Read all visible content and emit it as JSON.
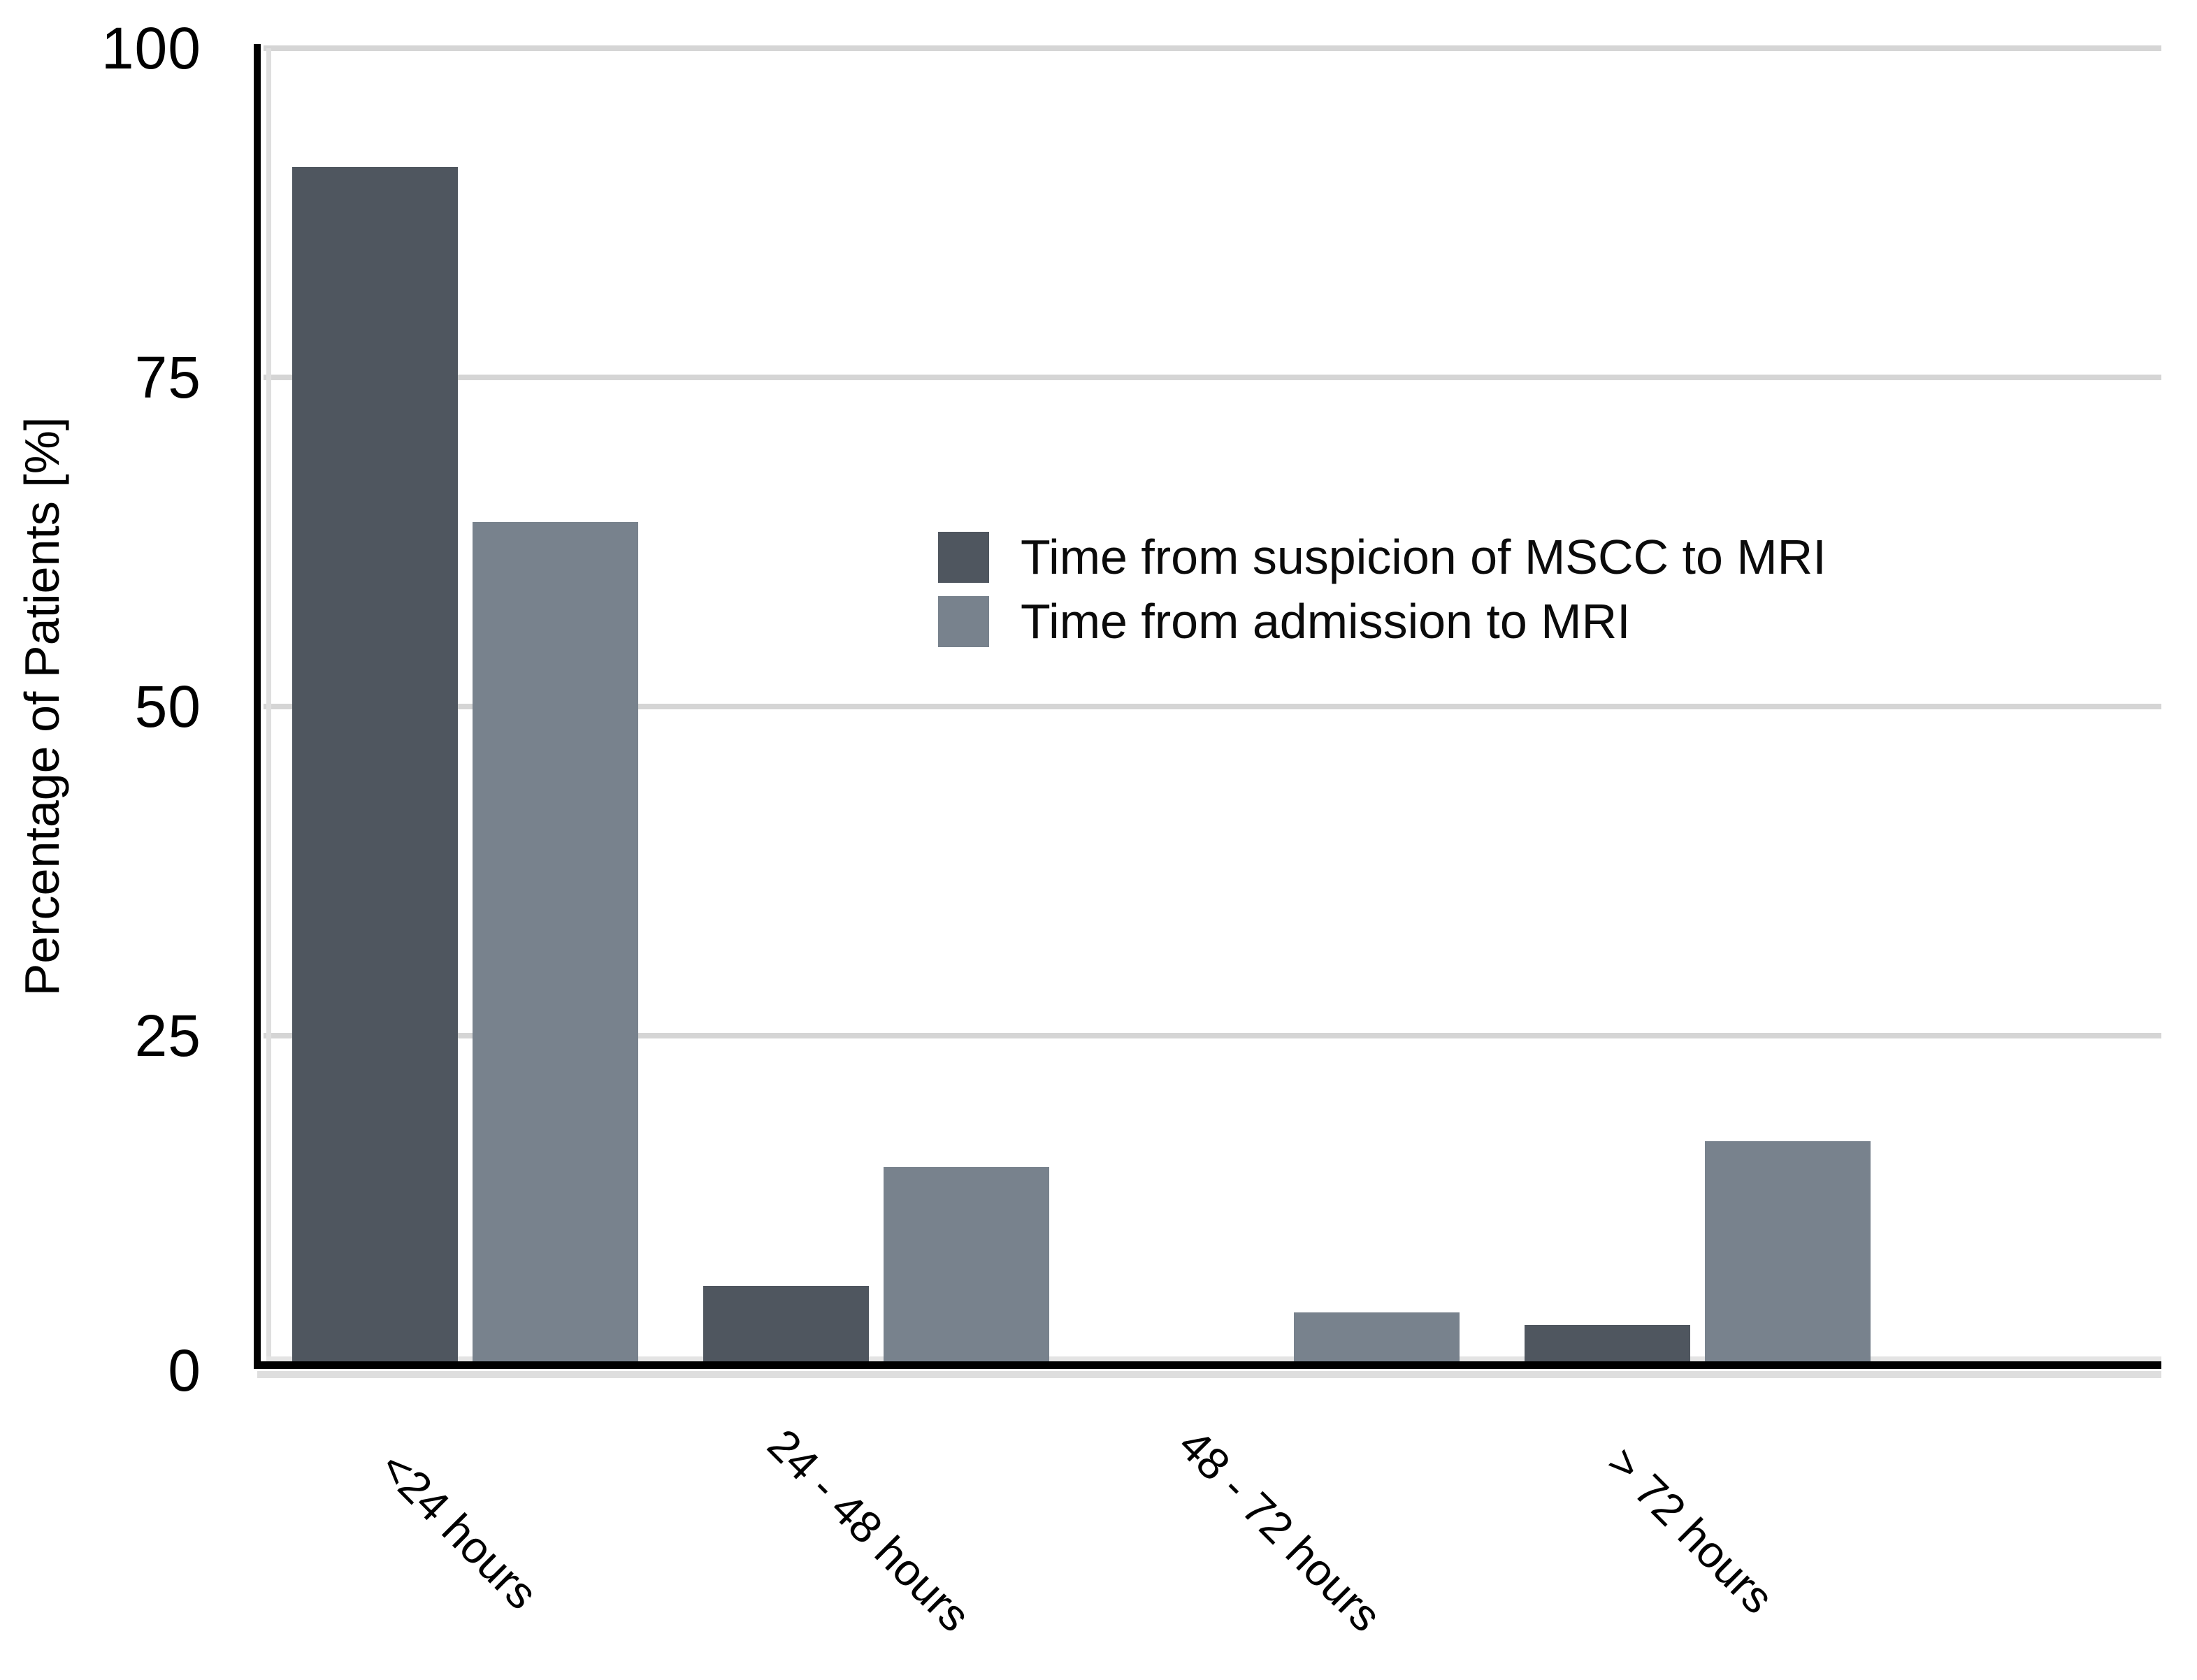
{
  "chart_data": {
    "type": "bar",
    "categories": [
      "<24 hours",
      "24 - 48 hours",
      "48 - 72 hours",
      "> 72 hours"
    ],
    "series": [
      {
        "name": "Time from suspicion of MSCC to MRI",
        "values": [
          91,
          6,
          0,
          3
        ],
        "color": "#4f565f"
      },
      {
        "name": "Time from admission to MRI",
        "values": [
          64,
          15,
          4,
          17
        ],
        "color": "#78828d"
      }
    ],
    "title": "",
    "xlabel": "",
    "ylabel": "Percentage of Patients [%]",
    "yticks": [
      0,
      25,
      50,
      75,
      100
    ],
    "ylim": [
      0,
      100
    ],
    "grid": "horizontal",
    "gridline_color": "#d5d5d5",
    "axis_color": "#000000",
    "legend_position": "upper-center",
    "background": "#ffffff"
  }
}
